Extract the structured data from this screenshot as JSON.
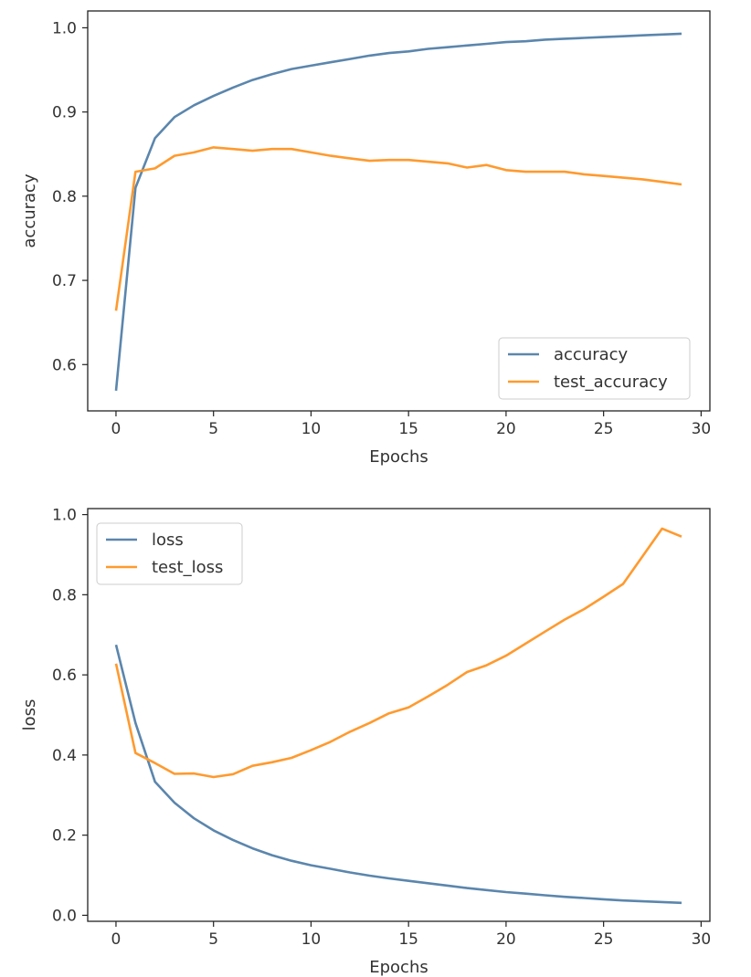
{
  "colors": {
    "series1": "#5b86ad",
    "series2": "#ff9a2e",
    "axis": "#222222",
    "text": "#333333",
    "legend_border": "#cccccc"
  },
  "chart_data": [
    {
      "type": "line",
      "title": "",
      "xlabel": "Epochs",
      "ylabel": "accuracy",
      "xlim": [
        -1.45,
        30.45
      ],
      "ylim": [
        0.545,
        1.02
      ],
      "xticks": [
        0,
        5,
        10,
        15,
        20,
        25,
        30
      ],
      "xtick_labels": [
        "0",
        "5",
        "10",
        "15",
        "20",
        "25",
        "30"
      ],
      "yticks": [
        0.6,
        0.7,
        0.8,
        0.9,
        1.0
      ],
      "ytick_labels": [
        "0.6",
        "0.7",
        "0.8",
        "0.9",
        "1.0"
      ],
      "grid": false,
      "legend": "bottom-right",
      "x": [
        0,
        1,
        2,
        3,
        4,
        5,
        6,
        7,
        8,
        9,
        10,
        11,
        12,
        13,
        14,
        15,
        16,
        17,
        18,
        19,
        20,
        21,
        22,
        23,
        24,
        25,
        26,
        27,
        28,
        29
      ],
      "series": [
        {
          "name": "accuracy",
          "color_key": "series1",
          "values": [
            0.569,
            0.81,
            0.869,
            0.894,
            0.908,
            0.919,
            0.929,
            0.938,
            0.945,
            0.951,
            0.955,
            0.959,
            0.963,
            0.967,
            0.97,
            0.972,
            0.975,
            0.977,
            0.979,
            0.981,
            0.983,
            0.984,
            0.986,
            0.987,
            0.988,
            0.989,
            0.99,
            0.991,
            0.992,
            0.993
          ]
        },
        {
          "name": "test_accuracy",
          "color_key": "series2",
          "values": [
            0.664,
            0.829,
            0.833,
            0.848,
            0.852,
            0.858,
            0.856,
            0.854,
            0.856,
            0.856,
            0.852,
            0.848,
            0.845,
            0.842,
            0.843,
            0.843,
            0.841,
            0.839,
            0.834,
            0.837,
            0.831,
            0.829,
            0.829,
            0.829,
            0.826,
            0.824,
            0.822,
            0.82,
            0.817,
            0.814
          ]
        }
      ]
    },
    {
      "type": "line",
      "title": "",
      "xlabel": "Epochs",
      "ylabel": "loss",
      "xlim": [
        -1.45,
        30.45
      ],
      "ylim": [
        -0.015,
        1.015
      ],
      "xticks": [
        0,
        5,
        10,
        15,
        20,
        25,
        30
      ],
      "xtick_labels": [
        "0",
        "5",
        "10",
        "15",
        "20",
        "25",
        "30"
      ],
      "yticks": [
        0.0,
        0.2,
        0.4,
        0.6,
        0.8,
        1.0
      ],
      "ytick_labels": [
        "0.0",
        "0.2",
        "0.4",
        "0.6",
        "0.8",
        "1.0"
      ],
      "grid": false,
      "legend": "top-left",
      "x": [
        0,
        1,
        2,
        3,
        4,
        5,
        6,
        7,
        8,
        9,
        10,
        11,
        12,
        13,
        14,
        15,
        16,
        17,
        18,
        19,
        20,
        21,
        22,
        23,
        24,
        25,
        26,
        27,
        28,
        29
      ],
      "series": [
        {
          "name": "loss",
          "color_key": "series1",
          "values": [
            0.675,
            0.48,
            0.333,
            0.281,
            0.242,
            0.212,
            0.188,
            0.167,
            0.15,
            0.136,
            0.125,
            0.116,
            0.107,
            0.099,
            0.092,
            0.086,
            0.08,
            0.074,
            0.068,
            0.063,
            0.058,
            0.054,
            0.05,
            0.046,
            0.043,
            0.04,
            0.037,
            0.035,
            0.033,
            0.031
          ]
        },
        {
          "name": "test_loss",
          "color_key": "series2",
          "values": [
            0.628,
            0.405,
            0.38,
            0.353,
            0.354,
            0.345,
            0.352,
            0.373,
            0.382,
            0.393,
            0.412,
            0.433,
            0.458,
            0.48,
            0.504,
            0.519,
            0.546,
            0.575,
            0.607,
            0.624,
            0.648,
            0.678,
            0.708,
            0.738,
            0.764,
            0.795,
            0.827,
            0.896,
            0.965,
            0.945
          ]
        }
      ]
    }
  ]
}
